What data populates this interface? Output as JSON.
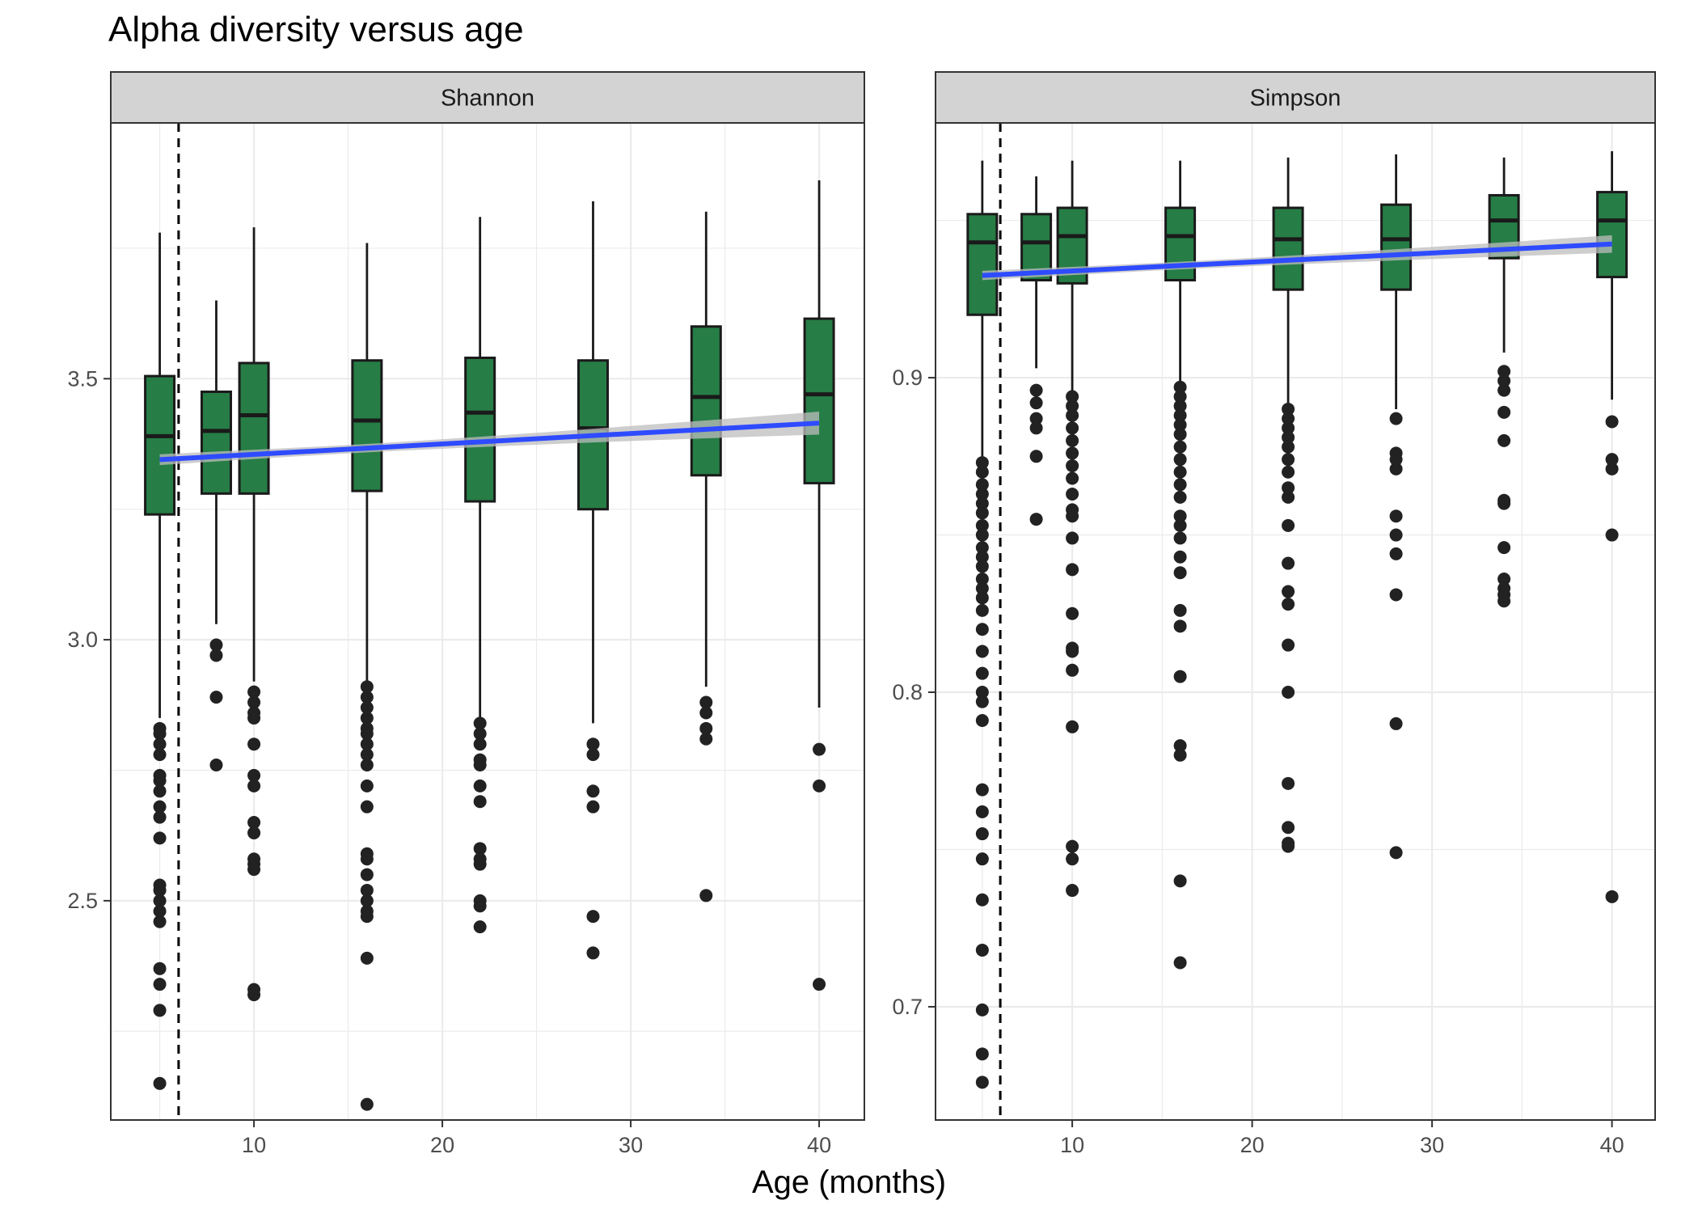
{
  "chart_data": {
    "type": "boxplot",
    "title": "Alpha diversity versus age",
    "xlabel": "Age (months)",
    "ylabel": "",
    "colors": {
      "box_fill": "#267D46",
      "box_line": "#1a1a1a",
      "trend_line": "#2E4BFF",
      "ribbon": "#BEBEBE",
      "strip_fill": "#D3D3D3",
      "grid": "#EBEBEB",
      "outlier": "#222222"
    },
    "panels": [
      {
        "name": "Shannon",
        "x_range": [
          2.4,
          42.4
        ],
        "x_ticks": [
          10,
          20,
          30,
          40
        ],
        "y_range": [
          2.08,
          3.99
        ],
        "y_ticks": [
          2.5,
          3.0,
          3.5
        ],
        "y_tick_labels": [
          "2.5",
          "3.0",
          "3.5"
        ],
        "vline": 6,
        "trend": {
          "x0": 5,
          "y0": 3.345,
          "x1": 40,
          "y1": 3.415,
          "se_start": 0.008,
          "se_end": 0.022
        },
        "boxes": [
          {
            "x": 5,
            "lower": 2.85,
            "q1": 3.24,
            "median": 3.39,
            "q3": 3.505,
            "upper": 3.78,
            "outliers": [
              2.83,
              2.82,
              2.8,
              2.78,
              2.74,
              2.73,
              2.71,
              2.68,
              2.66,
              2.62,
              2.53,
              2.52,
              2.5,
              2.48,
              2.46,
              2.37,
              2.34,
              2.29,
              2.15
            ]
          },
          {
            "x": 8,
            "lower": 3.03,
            "q1": 3.28,
            "median": 3.4,
            "q3": 3.475,
            "upper": 3.65,
            "outliers": [
              2.99,
              2.97,
              2.89,
              2.76
            ]
          },
          {
            "x": 10,
            "lower": 2.92,
            "q1": 3.28,
            "median": 3.43,
            "q3": 3.53,
            "upper": 3.79,
            "outliers": [
              2.9,
              2.88,
              2.86,
              2.85,
              2.8,
              2.74,
              2.72,
              2.65,
              2.63,
              2.58,
              2.57,
              2.56,
              2.33,
              2.32
            ]
          },
          {
            "x": 16,
            "lower": 2.92,
            "q1": 3.285,
            "median": 3.42,
            "q3": 3.535,
            "upper": 3.76,
            "outliers": [
              2.91,
              2.89,
              2.87,
              2.85,
              2.83,
              2.82,
              2.8,
              2.78,
              2.76,
              2.72,
              2.68,
              2.59,
              2.58,
              2.55,
              2.52,
              2.5,
              2.48,
              2.47,
              2.39,
              2.11
            ]
          },
          {
            "x": 22,
            "lower": 2.85,
            "q1": 3.265,
            "median": 3.435,
            "q3": 3.54,
            "upper": 3.81,
            "outliers": [
              2.84,
              2.82,
              2.8,
              2.77,
              2.76,
              2.72,
              2.69,
              2.6,
              2.58,
              2.57,
              2.5,
              2.49,
              2.45
            ]
          },
          {
            "x": 28,
            "lower": 2.84,
            "q1": 3.25,
            "median": 3.405,
            "q3": 3.535,
            "upper": 3.84,
            "outliers": [
              2.8,
              2.78,
              2.71,
              2.68,
              2.47,
              2.4
            ]
          },
          {
            "x": 34,
            "lower": 2.91,
            "q1": 3.315,
            "median": 3.465,
            "q3": 3.6,
            "upper": 3.82,
            "outliers": [
              2.88,
              2.86,
              2.83,
              2.81,
              2.51
            ]
          },
          {
            "x": 40,
            "lower": 2.87,
            "q1": 3.3,
            "median": 3.47,
            "q3": 3.615,
            "upper": 3.88,
            "outliers": [
              2.79,
              2.72,
              2.34
            ]
          }
        ]
      },
      {
        "name": "Simpson",
        "x_range": [
          2.4,
          42.4
        ],
        "x_ticks": [
          10,
          20,
          30,
          40
        ],
        "y_range": [
          0.664,
          0.981
        ],
        "y_ticks": [
          0.7,
          0.8,
          0.9
        ],
        "y_tick_labels": [
          "0.7",
          "0.8",
          "0.9"
        ],
        "vline": 6,
        "trend": {
          "x0": 5,
          "y0": 0.9325,
          "x1": 40,
          "y1": 0.9425,
          "se_start": 0.0012,
          "se_end": 0.0028
        },
        "boxes": [
          {
            "x": 5,
            "lower": 0.874,
            "q1": 0.92,
            "median": 0.943,
            "q3": 0.952,
            "upper": 0.969,
            "outliers": [
              0.873,
              0.87,
              0.866,
              0.863,
              0.86,
              0.857,
              0.853,
              0.85,
              0.846,
              0.843,
              0.84,
              0.836,
              0.833,
              0.83,
              0.826,
              0.82,
              0.813,
              0.806,
              0.8,
              0.797,
              0.791,
              0.769,
              0.762,
              0.755,
              0.747,
              0.734,
              0.718,
              0.699,
              0.685,
              0.676
            ]
          },
          {
            "x": 8,
            "lower": 0.903,
            "q1": 0.931,
            "median": 0.943,
            "q3": 0.952,
            "upper": 0.964,
            "outliers": [
              0.896,
              0.892,
              0.887,
              0.884,
              0.875,
              0.855
            ]
          },
          {
            "x": 10,
            "lower": 0.895,
            "q1": 0.93,
            "median": 0.945,
            "q3": 0.954,
            "upper": 0.969,
            "outliers": [
              0.894,
              0.891,
              0.888,
              0.884,
              0.88,
              0.876,
              0.872,
              0.868,
              0.863,
              0.858,
              0.856,
              0.849,
              0.839,
              0.825,
              0.814,
              0.813,
              0.807,
              0.789,
              0.751,
              0.747,
              0.737
            ]
          },
          {
            "x": 16,
            "lower": 0.898,
            "q1": 0.931,
            "median": 0.945,
            "q3": 0.954,
            "upper": 0.969,
            "outliers": [
              0.897,
              0.894,
              0.891,
              0.888,
              0.885,
              0.882,
              0.878,
              0.874,
              0.87,
              0.866,
              0.862,
              0.856,
              0.853,
              0.849,
              0.843,
              0.838,
              0.826,
              0.821,
              0.805,
              0.783,
              0.78,
              0.74,
              0.714
            ]
          },
          {
            "x": 22,
            "lower": 0.892,
            "q1": 0.928,
            "median": 0.944,
            "q3": 0.954,
            "upper": 0.97,
            "outliers": [
              0.89,
              0.887,
              0.884,
              0.881,
              0.878,
              0.874,
              0.87,
              0.865,
              0.862,
              0.853,
              0.841,
              0.832,
              0.828,
              0.815,
              0.8,
              0.771,
              0.757,
              0.752,
              0.751
            ]
          },
          {
            "x": 28,
            "lower": 0.89,
            "q1": 0.928,
            "median": 0.944,
            "q3": 0.955,
            "upper": 0.971,
            "outliers": [
              0.887,
              0.876,
              0.874,
              0.871,
              0.856,
              0.85,
              0.844,
              0.831,
              0.79,
              0.749
            ]
          },
          {
            "x": 34,
            "lower": 0.908,
            "q1": 0.938,
            "median": 0.95,
            "q3": 0.958,
            "upper": 0.97,
            "outliers": [
              0.902,
              0.899,
              0.896,
              0.889,
              0.88,
              0.861,
              0.86,
              0.846,
              0.836,
              0.833,
              0.831,
              0.829
            ]
          },
          {
            "x": 40,
            "lower": 0.893,
            "q1": 0.932,
            "median": 0.95,
            "q3": 0.959,
            "upper": 0.972,
            "outliers": [
              0.886,
              0.874,
              0.871,
              0.85,
              0.735
            ]
          }
        ]
      }
    ]
  }
}
